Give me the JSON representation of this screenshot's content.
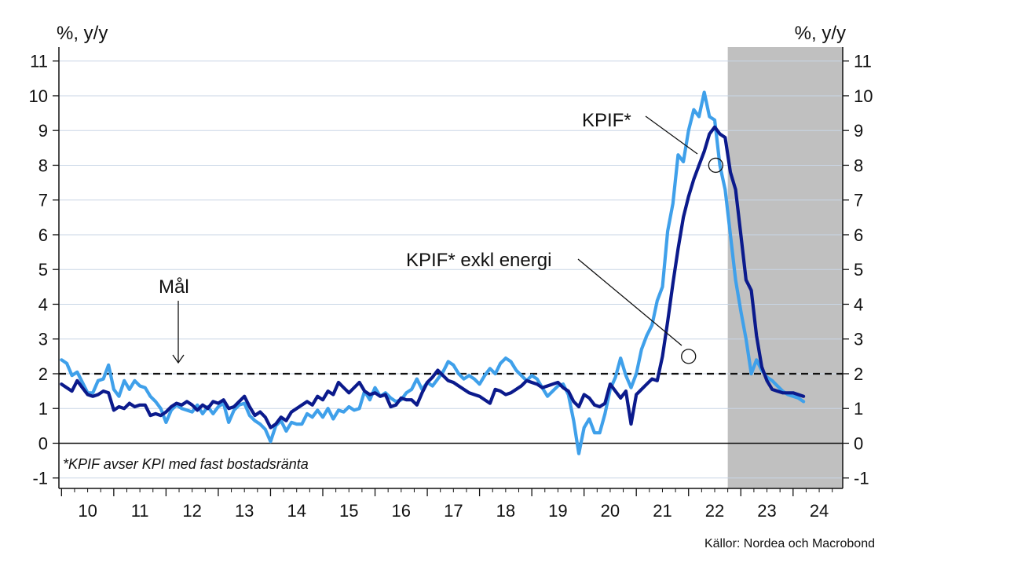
{
  "chart_data": {
    "type": "line",
    "ylabel_left": "%, y/y",
    "ylabel_right": "%, y/y",
    "ylim": [
      -1.3,
      11.4
    ],
    "yticks": [
      -1,
      0,
      1,
      2,
      3,
      4,
      5,
      6,
      7,
      8,
      9,
      10,
      11
    ],
    "xlim": [
      2009.95,
      2024.95
    ],
    "x_tick_labels": [
      "10",
      "11",
      "12",
      "13",
      "14",
      "15",
      "16",
      "17",
      "18",
      "19",
      "20",
      "21",
      "22",
      "23",
      "24"
    ],
    "grid": true,
    "forecast_shade": [
      2022.75,
      2024.95
    ],
    "target": {
      "value": 2,
      "label": "Mål"
    },
    "note": "*KPIF avser KPI med fast bostadsränta",
    "source": "Källor: Nordea och Macrobond",
    "series": [
      {
        "name": "KPIF*",
        "color": "#3fa0ea",
        "points": [
          [
            2010.0,
            2.4
          ],
          [
            2010.1,
            2.3
          ],
          [
            2010.2,
            1.95
          ],
          [
            2010.3,
            2.05
          ],
          [
            2010.4,
            1.75
          ],
          [
            2010.5,
            1.45
          ],
          [
            2010.6,
            1.45
          ],
          [
            2010.7,
            1.8
          ],
          [
            2010.8,
            1.85
          ],
          [
            2010.9,
            2.25
          ],
          [
            2011.0,
            1.55
          ],
          [
            2011.1,
            1.35
          ],
          [
            2011.2,
            1.8
          ],
          [
            2011.3,
            1.55
          ],
          [
            2011.4,
            1.8
          ],
          [
            2011.5,
            1.65
          ],
          [
            2011.6,
            1.6
          ],
          [
            2011.7,
            1.35
          ],
          [
            2011.8,
            1.2
          ],
          [
            2011.9,
            1.0
          ],
          [
            2012.0,
            0.6
          ],
          [
            2012.1,
            0.95
          ],
          [
            2012.2,
            1.1
          ],
          [
            2012.3,
            1.0
          ],
          [
            2012.4,
            0.95
          ],
          [
            2012.5,
            0.9
          ],
          [
            2012.6,
            1.1
          ],
          [
            2012.7,
            0.85
          ],
          [
            2012.8,
            1.05
          ],
          [
            2012.9,
            0.85
          ],
          [
            2013.0,
            1.05
          ],
          [
            2013.1,
            1.15
          ],
          [
            2013.2,
            0.6
          ],
          [
            2013.3,
            0.95
          ],
          [
            2013.4,
            1.1
          ],
          [
            2013.5,
            1.15
          ],
          [
            2013.6,
            0.8
          ],
          [
            2013.7,
            0.65
          ],
          [
            2013.8,
            0.55
          ],
          [
            2013.9,
            0.4
          ],
          [
            2014.0,
            0.05
          ],
          [
            2014.1,
            0.5
          ],
          [
            2014.2,
            0.65
          ],
          [
            2014.3,
            0.35
          ],
          [
            2014.4,
            0.6
          ],
          [
            2014.5,
            0.55
          ],
          [
            2014.6,
            0.55
          ],
          [
            2014.7,
            0.85
          ],
          [
            2014.8,
            0.75
          ],
          [
            2014.9,
            0.95
          ],
          [
            2015.0,
            0.75
          ],
          [
            2015.1,
            1.0
          ],
          [
            2015.2,
            0.7
          ],
          [
            2015.3,
            0.95
          ],
          [
            2015.4,
            0.9
          ],
          [
            2015.5,
            1.05
          ],
          [
            2015.6,
            0.95
          ],
          [
            2015.7,
            1.0
          ],
          [
            2015.8,
            1.5
          ],
          [
            2015.9,
            1.25
          ],
          [
            2016.0,
            1.6
          ],
          [
            2016.1,
            1.35
          ],
          [
            2016.2,
            1.45
          ],
          [
            2016.3,
            1.3
          ],
          [
            2016.4,
            1.2
          ],
          [
            2016.5,
            1.25
          ],
          [
            2016.6,
            1.45
          ],
          [
            2016.7,
            1.55
          ],
          [
            2016.8,
            1.85
          ],
          [
            2016.9,
            1.55
          ],
          [
            2017.0,
            1.75
          ],
          [
            2017.1,
            1.65
          ],
          [
            2017.2,
            1.85
          ],
          [
            2017.3,
            2.05
          ],
          [
            2017.4,
            2.35
          ],
          [
            2017.5,
            2.25
          ],
          [
            2017.6,
            2.0
          ],
          [
            2017.7,
            1.85
          ],
          [
            2017.8,
            1.95
          ],
          [
            2017.9,
            1.85
          ],
          [
            2018.0,
            1.7
          ],
          [
            2018.1,
            1.95
          ],
          [
            2018.2,
            2.15
          ],
          [
            2018.3,
            2.0
          ],
          [
            2018.4,
            2.3
          ],
          [
            2018.5,
            2.45
          ],
          [
            2018.6,
            2.35
          ],
          [
            2018.7,
            2.1
          ],
          [
            2018.8,
            1.95
          ],
          [
            2018.9,
            1.8
          ],
          [
            2019.0,
            1.95
          ],
          [
            2019.1,
            1.85
          ],
          [
            2019.2,
            1.6
          ],
          [
            2019.3,
            1.35
          ],
          [
            2019.4,
            1.5
          ],
          [
            2019.5,
            1.65
          ],
          [
            2019.6,
            1.7
          ],
          [
            2019.7,
            1.4
          ],
          [
            2019.8,
            0.65
          ],
          [
            2019.9,
            -0.3
          ],
          [
            2020.0,
            0.45
          ],
          [
            2020.1,
            0.7
          ],
          [
            2020.2,
            0.3
          ],
          [
            2020.3,
            0.3
          ],
          [
            2020.4,
            0.85
          ],
          [
            2020.5,
            1.55
          ],
          [
            2020.6,
            1.9
          ],
          [
            2020.7,
            2.45
          ],
          [
            2020.8,
            1.95
          ],
          [
            2020.9,
            1.6
          ],
          [
            2021.0,
            2.0
          ],
          [
            2021.1,
            2.7
          ],
          [
            2021.2,
            3.1
          ],
          [
            2021.3,
            3.4
          ],
          [
            2021.4,
            4.1
          ],
          [
            2021.5,
            4.5
          ],
          [
            2021.6,
            6.1
          ],
          [
            2021.7,
            6.9
          ],
          [
            2021.8,
            8.3
          ],
          [
            2021.9,
            8.1
          ],
          [
            2022.0,
            9.0
          ],
          [
            2022.1,
            9.6
          ],
          [
            2022.2,
            9.4
          ],
          [
            2022.3,
            10.1
          ],
          [
            2022.4,
            9.4
          ],
          [
            2022.5,
            9.3
          ],
          [
            2022.6,
            8.0
          ],
          [
            2022.7,
            7.3
          ],
          [
            2022.8,
            6.0
          ],
          [
            2022.9,
            4.7
          ],
          [
            2023.0,
            3.8
          ],
          [
            2023.1,
            3.0
          ],
          [
            2023.2,
            2.0
          ],
          [
            2023.3,
            2.4
          ],
          [
            2023.4,
            2.1
          ],
          [
            2023.5,
            1.9
          ],
          [
            2023.6,
            1.8
          ],
          [
            2023.7,
            1.65
          ],
          [
            2023.8,
            1.5
          ],
          [
            2023.9,
            1.4
          ],
          [
            2024.0,
            1.35
          ],
          [
            2024.1,
            1.3
          ],
          [
            2024.2,
            1.2
          ]
        ]
      },
      {
        "name": "KPIF* exkl energi",
        "color": "#0b1a8c",
        "points": [
          [
            2010.0,
            1.7
          ],
          [
            2010.1,
            1.6
          ],
          [
            2010.2,
            1.5
          ],
          [
            2010.3,
            1.8
          ],
          [
            2010.4,
            1.6
          ],
          [
            2010.5,
            1.4
          ],
          [
            2010.6,
            1.35
          ],
          [
            2010.7,
            1.4
          ],
          [
            2010.8,
            1.5
          ],
          [
            2010.9,
            1.45
          ],
          [
            2011.0,
            0.95
          ],
          [
            2011.1,
            1.05
          ],
          [
            2011.2,
            1.0
          ],
          [
            2011.3,
            1.15
          ],
          [
            2011.4,
            1.05
          ],
          [
            2011.5,
            1.1
          ],
          [
            2011.6,
            1.1
          ],
          [
            2011.7,
            0.8
          ],
          [
            2011.8,
            0.85
          ],
          [
            2011.9,
            0.8
          ],
          [
            2012.0,
            0.9
          ],
          [
            2012.1,
            1.05
          ],
          [
            2012.2,
            1.15
          ],
          [
            2012.3,
            1.1
          ],
          [
            2012.4,
            1.2
          ],
          [
            2012.5,
            1.1
          ],
          [
            2012.6,
            0.95
          ],
          [
            2012.7,
            1.1
          ],
          [
            2012.8,
            1.0
          ],
          [
            2012.9,
            1.2
          ],
          [
            2013.0,
            1.15
          ],
          [
            2013.1,
            1.25
          ],
          [
            2013.2,
            1.0
          ],
          [
            2013.3,
            1.05
          ],
          [
            2013.4,
            1.2
          ],
          [
            2013.5,
            1.35
          ],
          [
            2013.6,
            1.05
          ],
          [
            2013.7,
            0.8
          ],
          [
            2013.8,
            0.9
          ],
          [
            2013.9,
            0.75
          ],
          [
            2014.0,
            0.45
          ],
          [
            2014.1,
            0.55
          ],
          [
            2014.2,
            0.75
          ],
          [
            2014.3,
            0.65
          ],
          [
            2014.4,
            0.9
          ],
          [
            2014.5,
            1.0
          ],
          [
            2014.6,
            1.1
          ],
          [
            2014.7,
            1.2
          ],
          [
            2014.8,
            1.1
          ],
          [
            2014.9,
            1.35
          ],
          [
            2015.0,
            1.25
          ],
          [
            2015.1,
            1.5
          ],
          [
            2015.2,
            1.4
          ],
          [
            2015.3,
            1.75
          ],
          [
            2015.4,
            1.6
          ],
          [
            2015.5,
            1.45
          ],
          [
            2015.6,
            1.6
          ],
          [
            2015.7,
            1.75
          ],
          [
            2015.8,
            1.5
          ],
          [
            2015.9,
            1.4
          ],
          [
            2016.0,
            1.45
          ],
          [
            2016.1,
            1.35
          ],
          [
            2016.2,
            1.4
          ],
          [
            2016.3,
            1.05
          ],
          [
            2016.4,
            1.1
          ],
          [
            2016.5,
            1.3
          ],
          [
            2016.6,
            1.25
          ],
          [
            2016.7,
            1.25
          ],
          [
            2016.8,
            1.1
          ],
          [
            2016.9,
            1.45
          ],
          [
            2017.0,
            1.75
          ],
          [
            2017.1,
            1.9
          ],
          [
            2017.2,
            2.1
          ],
          [
            2017.3,
            1.95
          ],
          [
            2017.4,
            1.8
          ],
          [
            2017.5,
            1.75
          ],
          [
            2017.6,
            1.65
          ],
          [
            2017.7,
            1.55
          ],
          [
            2017.8,
            1.45
          ],
          [
            2017.9,
            1.4
          ],
          [
            2018.0,
            1.35
          ],
          [
            2018.1,
            1.25
          ],
          [
            2018.2,
            1.15
          ],
          [
            2018.3,
            1.55
          ],
          [
            2018.4,
            1.5
          ],
          [
            2018.5,
            1.4
          ],
          [
            2018.6,
            1.45
          ],
          [
            2018.7,
            1.55
          ],
          [
            2018.8,
            1.65
          ],
          [
            2018.9,
            1.8
          ],
          [
            2019.0,
            1.75
          ],
          [
            2019.1,
            1.7
          ],
          [
            2019.2,
            1.6
          ],
          [
            2019.3,
            1.65
          ],
          [
            2019.4,
            1.7
          ],
          [
            2019.5,
            1.75
          ],
          [
            2019.6,
            1.6
          ],
          [
            2019.7,
            1.5
          ],
          [
            2019.8,
            1.2
          ],
          [
            2019.9,
            1.05
          ],
          [
            2020.0,
            1.4
          ],
          [
            2020.1,
            1.3
          ],
          [
            2020.2,
            1.1
          ],
          [
            2020.3,
            1.05
          ],
          [
            2020.4,
            1.15
          ],
          [
            2020.5,
            1.7
          ],
          [
            2020.6,
            1.5
          ],
          [
            2020.7,
            1.3
          ],
          [
            2020.8,
            1.5
          ],
          [
            2020.9,
            0.55
          ],
          [
            2021.0,
            1.4
          ],
          [
            2021.1,
            1.55
          ],
          [
            2021.2,
            1.7
          ],
          [
            2021.3,
            1.85
          ],
          [
            2021.4,
            1.8
          ],
          [
            2021.5,
            2.5
          ],
          [
            2021.6,
            3.5
          ],
          [
            2021.7,
            4.6
          ],
          [
            2021.8,
            5.6
          ],
          [
            2021.9,
            6.5
          ],
          [
            2022.0,
            7.1
          ],
          [
            2022.1,
            7.6
          ],
          [
            2022.2,
            8.0
          ],
          [
            2022.3,
            8.4
          ],
          [
            2022.4,
            8.9
          ],
          [
            2022.5,
            9.1
          ],
          [
            2022.6,
            8.9
          ],
          [
            2022.7,
            8.8
          ],
          [
            2022.8,
            7.8
          ],
          [
            2022.9,
            7.3
          ],
          [
            2023.0,
            6.0
          ],
          [
            2023.1,
            4.7
          ],
          [
            2023.2,
            4.4
          ],
          [
            2023.3,
            3.1
          ],
          [
            2023.4,
            2.2
          ],
          [
            2023.5,
            1.8
          ],
          [
            2023.6,
            1.55
          ],
          [
            2023.7,
            1.5
          ],
          [
            2023.8,
            1.45
          ],
          [
            2023.9,
            1.45
          ],
          [
            2024.0,
            1.45
          ],
          [
            2024.1,
            1.4
          ],
          [
            2024.2,
            1.35
          ]
        ]
      }
    ],
    "annotations": [
      {
        "text": "KPIF*",
        "series": "KPIF*",
        "at": [
          2022.52,
          8.0
        ]
      },
      {
        "text": "KPIF* exkl energi",
        "series": "KPIF* exkl energi",
        "at": [
          2022.0,
          2.5
        ]
      },
      {
        "text": "Mål",
        "target_arrow": true
      }
    ]
  }
}
